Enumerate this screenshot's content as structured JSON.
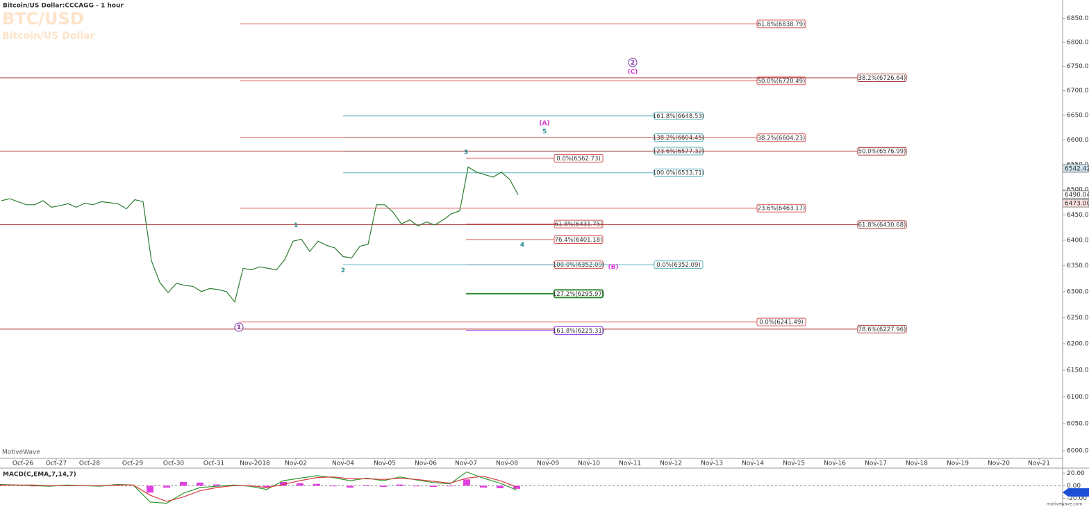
{
  "header": {
    "title": "Bitcoin/US Dollar:CCCAGG - 1 hour",
    "symbol": "BTC/USD",
    "name": "Bitcoin/US Dollar",
    "watermark": "MotiveWave",
    "footer": "motivewave.com"
  },
  "chart_data": [
    {
      "type": "line",
      "log_scale": true,
      "color": "#2e7d32",
      "values": [
        6478,
        6482,
        6476,
        6470,
        6470,
        6478,
        6465,
        6468,
        6472,
        6465,
        6473,
        6470,
        6476,
        6474,
        6472,
        6462,
        6480,
        6476,
        6360,
        6318,
        6298,
        6316,
        6312,
        6310,
        6300,
        6306,
        6304,
        6300,
        6280,
        6345,
        6342,
        6348,
        6345,
        6342,
        6362,
        6398,
        6402,
        6378,
        6398,
        6390,
        6385,
        6368,
        6365,
        6388,
        6392,
        6470,
        6470,
        6455,
        6432,
        6440,
        6428,
        6436,
        6430,
        6440,
        6452,
        6458,
        6545,
        6535,
        6530,
        6525,
        6535,
        6520,
        6490
      ],
      "ylim": [
        5986,
        6889
      ],
      "yticks": [
        {
          "value": 6000,
          "label": "6000.00"
        },
        {
          "value": 6050,
          "label": "6050.00"
        },
        {
          "value": 6100,
          "label": "6100.00"
        },
        {
          "value": 6150,
          "label": "6150.00"
        },
        {
          "value": 6200,
          "label": "6200.00"
        },
        {
          "value": 6250,
          "label": "6250.00"
        },
        {
          "value": 6300,
          "label": "6300.00"
        },
        {
          "value": 6350,
          "label": "6350.00"
        },
        {
          "value": 6400,
          "label": "6400.00"
        },
        {
          "value": 6450,
          "label": "6450.00"
        },
        {
          "value": 6500,
          "label": "6500.00"
        },
        {
          "value": 6550,
          "label": "6550.00"
        },
        {
          "value": 6600,
          "label": "6600.00"
        },
        {
          "value": 6650,
          "label": "6650.00"
        },
        {
          "value": 6700,
          "label": "6700.00"
        },
        {
          "value": 6750,
          "label": "6750.00"
        },
        {
          "value": 6800,
          "label": "6800.00"
        },
        {
          "value": 6850,
          "label": "6850.00"
        }
      ],
      "x_labels": [
        "Oct-26",
        "Oct-27",
        "Oct-28",
        "Oct-29",
        "Oct-30",
        "Oct-31",
        "Nov-2018",
        "Nov-02",
        "Nov-04",
        "Nov-05",
        "Nov-06",
        "Nov-07",
        "Nov-08",
        "Nov-09",
        "Nov-10",
        "Nov-11",
        "Nov-12",
        "Nov-13",
        "Nov-14",
        "Nov-15",
        "Nov-16",
        "Nov-17",
        "Nov-18",
        "Nov-19",
        "Nov-20",
        "Nov-21"
      ],
      "fib_levels": [
        {
          "value": 6838.79,
          "label": "61.8%(6838.79)",
          "color": "#d9534f"
        },
        {
          "value": 6720.49,
          "label": "50.0%(6720.49)",
          "color": "#d9534f"
        },
        {
          "value": 6726.64,
          "label": "38.2%(6726.64)",
          "color": "#a83232"
        },
        {
          "value": 6648.53,
          "label": "161.8%(6648.53)",
          "color": "#5ab4bf"
        },
        {
          "value": 6604.45,
          "label": "138.2%(6604.45)",
          "color": "#5ab4bf"
        },
        {
          "value": 6604.23,
          "label": "38.2%(6604.23)",
          "color": "#d9534f"
        },
        {
          "value": 6577.32,
          "label": "123.6%(6577.32)",
          "color": "#5ab4bf"
        },
        {
          "value": 6576.99,
          "label": "50.0%(6576.99)",
          "color": "#a83232"
        },
        {
          "value": 6562.73,
          "label": "0.0%(6562.73)",
          "color": "#d9534f"
        },
        {
          "value": 6533.71,
          "label": "100.0%(6533.71)",
          "color": "#5ab4bf"
        },
        {
          "value": 6463.17,
          "label": "23.6%(6463.17)",
          "color": "#d9534f"
        },
        {
          "value": 6431.75,
          "label": "61.8%(6431.75)",
          "color": "#d9534f"
        },
        {
          "value": 6430.68,
          "label": "61.8%(6430.68)",
          "color": "#a83232"
        },
        {
          "value": 6401.18,
          "label": "76.4%(6401.18)",
          "color": "#d9534f"
        },
        {
          "value": 6352.09,
          "label": "100.0%(6352.09)",
          "color": "#d9534f"
        },
        {
          "value": 6352.09,
          "label": "0.0%(6352.09)",
          "color": "#5ab4bf"
        },
        {
          "value": 6295.97,
          "label": "127.2%(6295.97)",
          "color": "#2e8b2e"
        },
        {
          "value": 6241.49,
          "label": "0.0%(6241.49)",
          "color": "#d9534f"
        },
        {
          "value": 6227.96,
          "label": "78.6%(6227.96)",
          "color": "#a83232"
        },
        {
          "value": 6225.31,
          "label": "161.8%(6225.31)",
          "color": "#8a2be2"
        }
      ],
      "wave_labels": [
        {
          "label": "1",
          "color": "#2a8c96"
        },
        {
          "label": "2",
          "color": "#2a8c96"
        },
        {
          "label": "3",
          "color": "#2a8c96"
        },
        {
          "label": "4",
          "color": "#2a8c96"
        },
        {
          "label": "5",
          "color": "#2a8c96"
        },
        {
          "label": "(A)",
          "color": "#d63ad6"
        },
        {
          "label": "(B)",
          "color": "#d63ad6"
        },
        {
          "label": "(C)",
          "color": "#d63ad6"
        },
        {
          "label": "1",
          "color": "#7b2f9e"
        },
        {
          "label": "2",
          "color": "#7b2f9e"
        }
      ],
      "price_markers": [
        {
          "value": 6542.42,
          "label": "6542.42",
          "color": "#cfe3ee"
        },
        {
          "value": 6490.04,
          "label": "6490.04",
          "color": "#ffffff"
        },
        {
          "value": 6473,
          "label": "6473.00",
          "color": "#fde0e0"
        }
      ]
    },
    {
      "type": "macd",
      "title": "MACD(C,EMA,7,14,7)",
      "series": [
        {
          "color": "#2e9a2e",
          "values": [
            2,
            1,
            0,
            -1,
            1,
            0,
            -1,
            2,
            1,
            -26,
            -28,
            -12,
            -3,
            -1,
            1,
            -1,
            -6,
            8,
            12,
            16,
            13,
            8,
            12,
            8,
            14,
            9,
            5,
            3,
            22,
            12,
            4,
            -7
          ]
        },
        {
          "color": "#d43b3b",
          "values": [
            1,
            1,
            1,
            0,
            0,
            0,
            0,
            1,
            1,
            -15,
            -25,
            -18,
            -8,
            -3,
            0,
            0,
            -3,
            2,
            8,
            13,
            14,
            11,
            11,
            10,
            12,
            10,
            7,
            4,
            12,
            15,
            8,
            -2
          ]
        }
      ],
      "histogram": {
        "color": "#e040e0",
        "values": [
          1,
          0,
          -1,
          -1,
          1,
          0,
          -1,
          1,
          0,
          -11,
          -3,
          6,
          5,
          2,
          1,
          -1,
          -3,
          6,
          4,
          3,
          -1,
          -3,
          1,
          -2,
          2,
          -1,
          -2,
          -1,
          10,
          -3,
          -4,
          -5
        ]
      },
      "ylim": [
        -34,
        27
      ],
      "yticks": [
        {
          "value": 20,
          "label": "20.00"
        },
        {
          "value": 0,
          "label": "0.00"
        },
        {
          "value": -20,
          "label": "-20.00"
        }
      ]
    }
  ]
}
